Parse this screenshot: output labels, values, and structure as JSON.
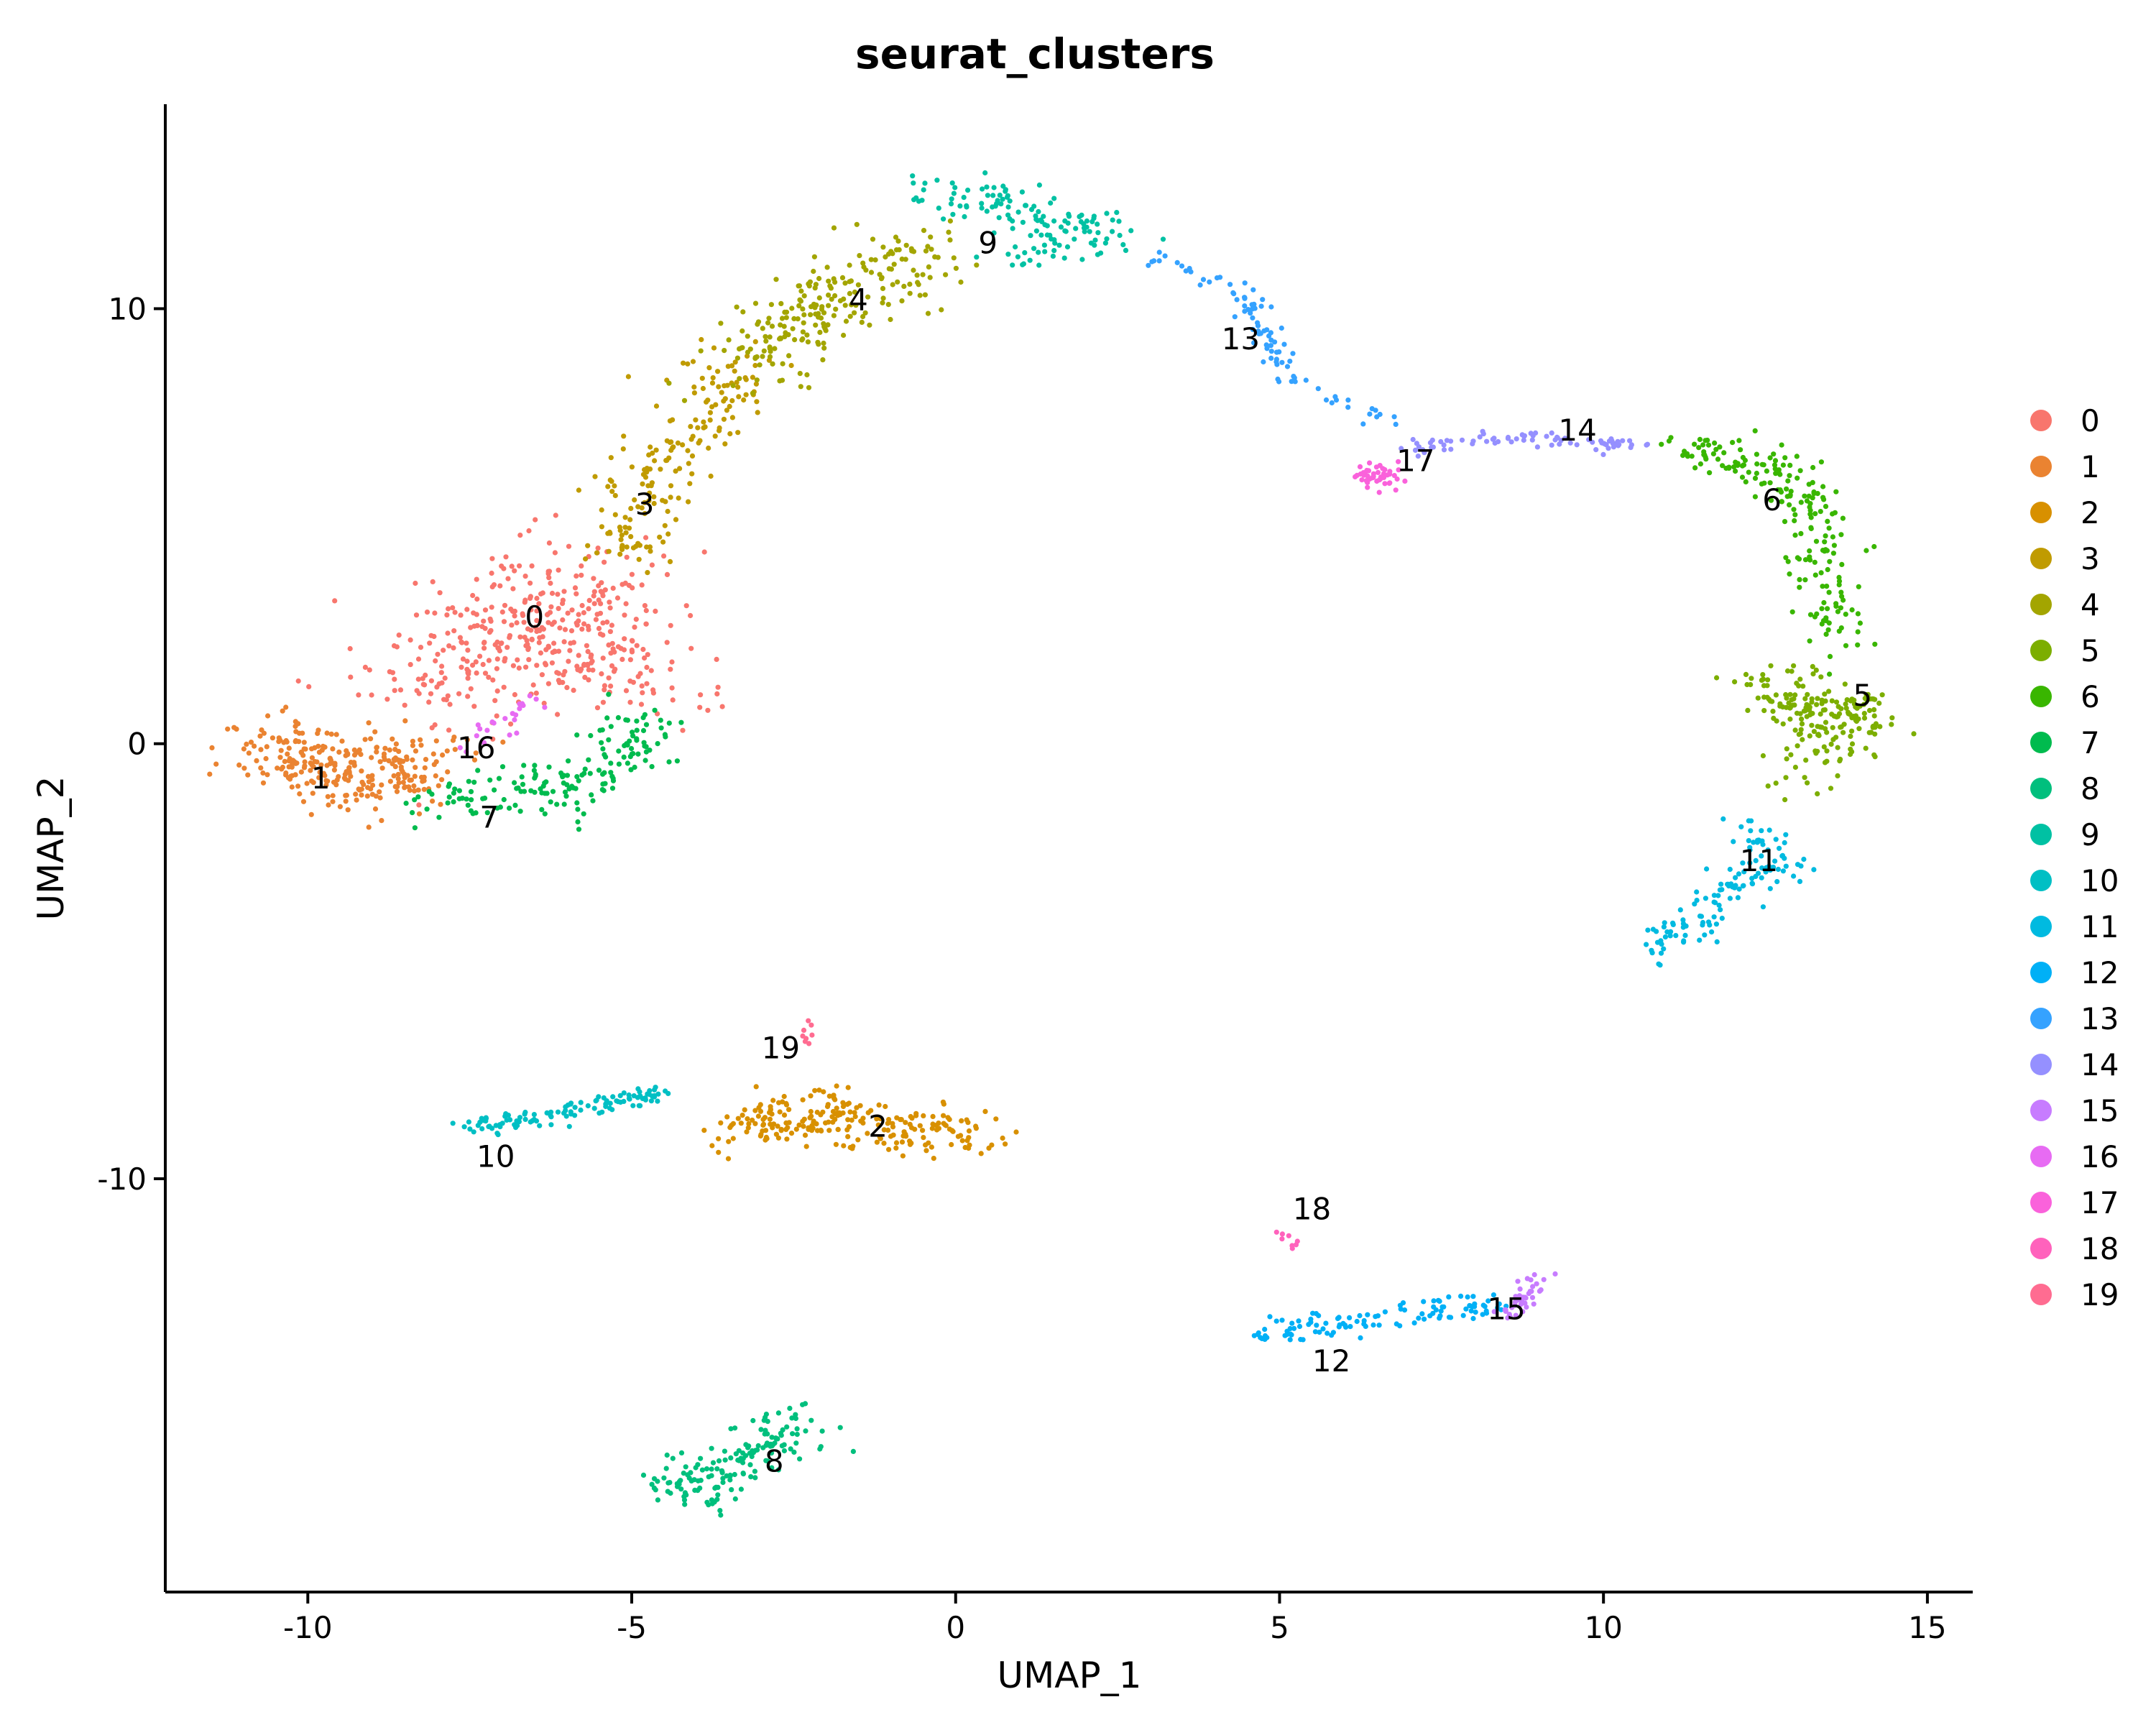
{
  "chart_data": {
    "type": "scatter",
    "title": "seurat_clusters",
    "xlabel": "UMAP_1",
    "ylabel": "UMAP_2",
    "xlim": [
      -12.2,
      15.7
    ],
    "ylim": [
      -19.5,
      14.7
    ],
    "xticks": [
      -10,
      -5,
      0,
      5,
      10,
      15
    ],
    "yticks": [
      -10,
      0,
      10
    ],
    "grid": false,
    "legend_position": "right",
    "legend": [
      {
        "label": "0",
        "color": "#F8766D"
      },
      {
        "label": "1",
        "color": "#EA8331"
      },
      {
        "label": "2",
        "color": "#D89000"
      },
      {
        "label": "3",
        "color": "#C09B00"
      },
      {
        "label": "4",
        "color": "#A3A500"
      },
      {
        "label": "5",
        "color": "#7CAE00"
      },
      {
        "label": "6",
        "color": "#39B600"
      },
      {
        "label": "7",
        "color": "#00BB4E"
      },
      {
        "label": "8",
        "color": "#00BF7D"
      },
      {
        "label": "9",
        "color": "#00C1A3"
      },
      {
        "label": "10",
        "color": "#00BFC4"
      },
      {
        "label": "11",
        "color": "#00BAE0"
      },
      {
        "label": "12",
        "color": "#00B0F6"
      },
      {
        "label": "13",
        "color": "#35A2FF"
      },
      {
        "label": "14",
        "color": "#9590FF"
      },
      {
        "label": "15",
        "color": "#C77CFF"
      },
      {
        "label": "16",
        "color": "#E76BF3"
      },
      {
        "label": "17",
        "color": "#FA62DB"
      },
      {
        "label": "18",
        "color": "#FF62BC"
      },
      {
        "label": "19",
        "color": "#FF6C91"
      }
    ],
    "clusters": [
      {
        "label": "0",
        "x": -6.5,
        "y": 2.9,
        "path": [
          [
            -7.5,
            1.5
          ],
          [
            -5.5,
            3.5
          ],
          [
            -8.5,
            1.2
          ],
          [
            -6,
            2.8
          ],
          [
            -5.0,
            1.5
          ],
          [
            -7.0,
            4.0
          ]
        ],
        "spread": 0.75,
        "n": 420
      },
      {
        "label": "1",
        "x": -9.8,
        "y": -0.8,
        "path": [
          [
            -10.7,
            0.2
          ],
          [
            -9.8,
            -0.6
          ],
          [
            -8.8,
            -0.8
          ],
          [
            -8.2,
            -0.3
          ]
        ],
        "spread": 0.4,
        "n": 280
      },
      {
        "label": "2",
        "x": -1.2,
        "y": -8.9,
        "path": [
          [
            -3.3,
            -8.8
          ],
          [
            -2.2,
            -8.6
          ],
          [
            -1.0,
            -8.9
          ],
          [
            0.5,
            -9.0
          ]
        ],
        "spread": 0.32,
        "n": 240
      },
      {
        "label": "3",
        "x": -4.8,
        "y": 5.6,
        "path": [
          [
            -5.2,
            4.3
          ],
          [
            -4.8,
            5.6
          ],
          [
            -4.0,
            7.3
          ],
          [
            -3.3,
            8.9
          ]
        ],
        "spread": 0.38,
        "n": 180
      },
      {
        "label": "4",
        "x": -1.5,
        "y": 10.0,
        "path": [
          [
            -3.2,
            8.5
          ],
          [
            -2.5,
            9.8
          ],
          [
            -1.5,
            10.5
          ],
          [
            -0.5,
            11.3
          ]
        ],
        "spread": 0.42,
        "n": 220
      },
      {
        "label": "5",
        "x": 13.8,
        "y": 1.0,
        "path": [
          [
            12.6,
            1.5
          ],
          [
            13.2,
            0.6
          ],
          [
            14.0,
            0.7
          ],
          [
            13.0,
            -0.6
          ]
        ],
        "spread": 0.35,
        "n": 200
      },
      {
        "label": "6",
        "x": 12.8,
        "y": 5.4,
        "path": [
          [
            11.3,
            6.8
          ],
          [
            12.5,
            6.4
          ],
          [
            13.2,
            5.4
          ],
          [
            13.5,
            3.6
          ],
          [
            13.5,
            2.2
          ]
        ],
        "spread": 0.28,
        "n": 200
      },
      {
        "label": "7",
        "x": -7.1,
        "y": -1.3,
        "path": [
          [
            -8.2,
            -1.5
          ],
          [
            -7.0,
            -1.0
          ],
          [
            -5.8,
            -1.0
          ],
          [
            -5.0,
            -0.2
          ],
          [
            -4.8,
            0.6
          ]
        ],
        "spread": 0.32,
        "n": 170
      },
      {
        "label": "8",
        "x": -2.8,
        "y": -16.3,
        "path": [
          [
            -4.6,
            -17.2
          ],
          [
            -3.7,
            -16.8
          ],
          [
            -2.9,
            -16.2
          ],
          [
            -2.6,
            -15.5
          ]
        ],
        "spread": 0.32,
        "n": 160
      },
      {
        "label": "9",
        "x": 0.5,
        "y": 11.6,
        "path": [
          [
            -0.8,
            12.4
          ],
          [
            0.5,
            12.7
          ],
          [
            1.5,
            12.0
          ],
          [
            2.5,
            11.7
          ],
          [
            0.8,
            11.2
          ]
        ],
        "spread": 0.25,
        "n": 140
      },
      {
        "label": "10",
        "x": -7.1,
        "y": -9.4,
        "path": [
          [
            -7.8,
            -8.9
          ],
          [
            -6.5,
            -8.6
          ],
          [
            -5.3,
            -8.2
          ],
          [
            -4.6,
            -8.0
          ]
        ],
        "spread": 0.14,
        "n": 110
      },
      {
        "label": "11",
        "x": 12.4,
        "y": -2.9,
        "path": [
          [
            10.8,
            -4.7
          ],
          [
            11.5,
            -4.0
          ],
          [
            12.0,
            -3.2
          ],
          [
            12.8,
            -2.9
          ],
          [
            12.1,
            -1.8
          ]
        ],
        "spread": 0.22,
        "n": 130
      },
      {
        "label": "12",
        "x": 5.8,
        "y": -13.8,
        "path": [
          [
            4.6,
            -13.6
          ],
          [
            5.8,
            -13.3
          ],
          [
            7.2,
            -13.1
          ],
          [
            8.3,
            -12.9
          ]
        ],
        "spread": 0.16,
        "n": 110
      },
      {
        "label": "13",
        "x": 4.1,
        "y": 9.6,
        "path": [
          [
            3.0,
            11.2
          ],
          [
            4.3,
            10.6
          ],
          [
            4.7,
            9.5
          ],
          [
            5.2,
            8.4
          ],
          [
            6.8,
            7.4
          ]
        ],
        "spread": 0.13,
        "n": 90
      },
      {
        "label": "14",
        "x": 9.6,
        "y": 7.3,
        "path": [
          [
            7.0,
            6.8
          ],
          [
            8.2,
            7.0
          ],
          [
            9.5,
            7.0
          ],
          [
            10.7,
            6.8
          ]
        ],
        "spread": 0.09,
        "n": 80
      },
      {
        "label": "15",
        "x": 8.8,
        "y": -13.0,
        "path": [
          [
            8.4,
            -13.1
          ],
          [
            8.8,
            -12.8
          ],
          [
            9.0,
            -12.2
          ]
        ],
        "spread": 0.12,
        "n": 40
      },
      {
        "label": "16",
        "x": -7.2,
        "y": 0.2,
        "path": [
          [
            -7.6,
            -0.3
          ],
          [
            -6.8,
            0.8
          ],
          [
            -6.5,
            0.9
          ]
        ],
        "spread": 0.15,
        "n": 22
      },
      {
        "label": "17",
        "x": 6.7,
        "y": 6.2,
        "path": [
          [
            6.3,
            6.1
          ],
          [
            6.7,
            6.2
          ]
        ],
        "spread": 0.15,
        "n": 45
      },
      {
        "label": "18",
        "x": 5.1,
        "y": -11.4,
        "path": [
          [
            5.0,
            -11.2
          ],
          [
            5.2,
            -11.6
          ]
        ],
        "spread": 0.05,
        "n": 8
      },
      {
        "label": "19",
        "x": -2.3,
        "y": -6.7,
        "path": [
          [
            -2.3,
            -6.3
          ],
          [
            -2.3,
            -6.9
          ]
        ],
        "spread": 0.05,
        "n": 8
      }
    ],
    "cluster_label_positions": [
      {
        "label": "0",
        "x": -6.5,
        "y": 2.9
      },
      {
        "label": "1",
        "x": -9.8,
        "y": -0.8
      },
      {
        "label": "2",
        "x": -1.2,
        "y": -8.8
      },
      {
        "label": "3",
        "x": -4.8,
        "y": 5.5
      },
      {
        "label": "4",
        "x": -1.5,
        "y": 10.2
      },
      {
        "label": "5",
        "x": 14.0,
        "y": 1.1
      },
      {
        "label": "6",
        "x": 12.6,
        "y": 5.6
      },
      {
        "label": "7",
        "x": -7.2,
        "y": -1.7
      },
      {
        "label": "8",
        "x": -2.8,
        "y": -16.5
      },
      {
        "label": "9",
        "x": 0.5,
        "y": 11.5
      },
      {
        "label": "10",
        "x": -7.1,
        "y": -9.5
      },
      {
        "label": "11",
        "x": 12.4,
        "y": -2.7
      },
      {
        "label": "12",
        "x": 5.8,
        "y": -14.2
      },
      {
        "label": "13",
        "x": 4.4,
        "y": 9.3
      },
      {
        "label": "14",
        "x": 9.6,
        "y": 7.2
      },
      {
        "label": "15",
        "x": 8.5,
        "y": -13.0
      },
      {
        "label": "16",
        "x": -7.4,
        "y": -0.1
      },
      {
        "label": "17",
        "x": 7.1,
        "y": 6.5
      },
      {
        "label": "18",
        "x": 5.5,
        "y": -10.7
      },
      {
        "label": "19",
        "x": -2.7,
        "y": -7.0
      }
    ]
  }
}
